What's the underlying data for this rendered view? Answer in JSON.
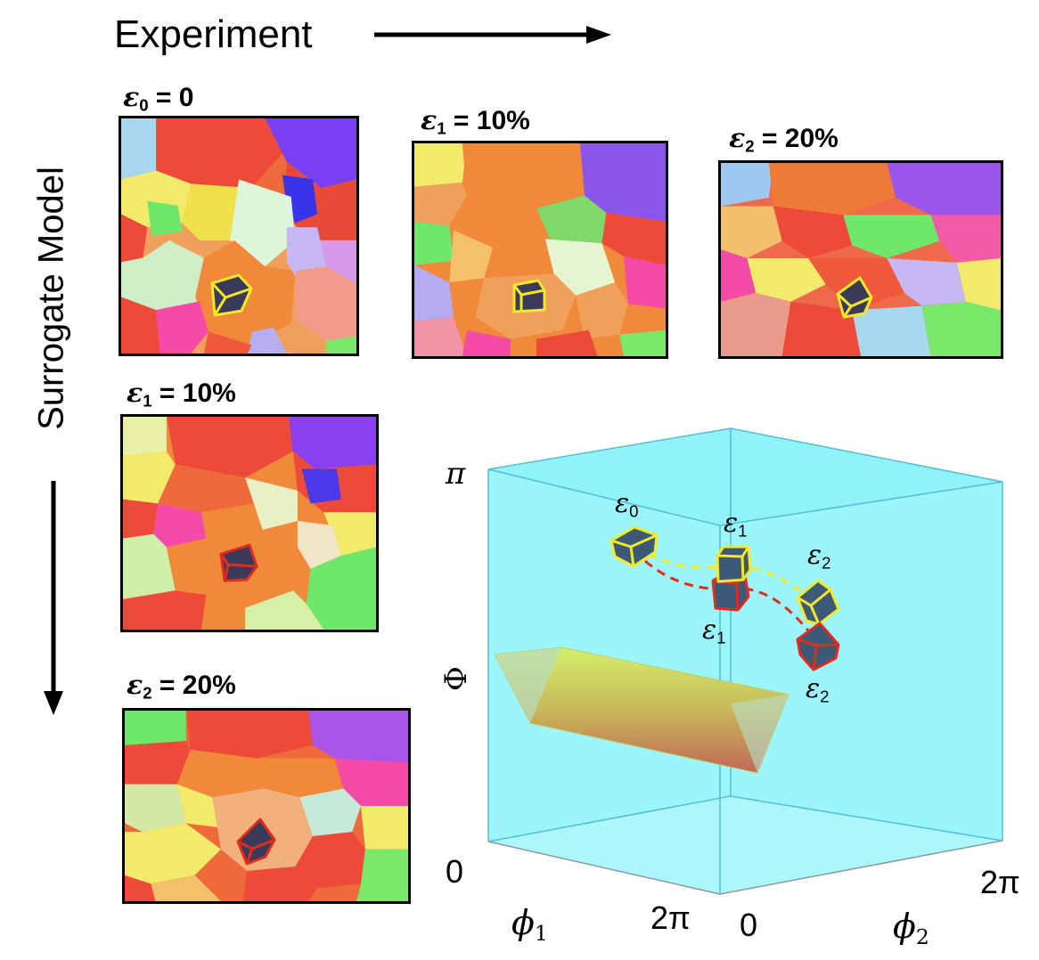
{
  "header": {
    "experiment_label": "Experiment"
  },
  "side": {
    "surrogate_label": "Surrogate Model"
  },
  "panels": {
    "exp0": {
      "eps": "ε",
      "sub": "0",
      "value": " = 0"
    },
    "exp1": {
      "eps": "ε",
      "sub": "1",
      "value": " = 10%"
    },
    "exp2": {
      "eps": "ε",
      "sub": "2",
      "value": " = 20%"
    },
    "sur1": {
      "eps": "ε",
      "sub": "1",
      "value": " = 10%"
    },
    "sur2": {
      "eps": "ε",
      "sub": "2",
      "value": " = 20%"
    }
  },
  "cube_plot": {
    "axis_labels": {
      "phi1": "ϕ",
      "phi1_sub": "1",
      "phi2": "ϕ",
      "phi2_sub": "2",
      "Phi": "Φ"
    },
    "ticks": {
      "pi": "π",
      "zero_left": "0",
      "two_pi_front": "2π",
      "zero_front": "0",
      "two_pi_right": "2π"
    },
    "markers": {
      "exp_eps0": {
        "eps": "ε",
        "sub": "0"
      },
      "exp_eps1": {
        "eps": "ε",
        "sub": "1"
      },
      "exp_eps2": {
        "eps": "ε",
        "sub": "2"
      },
      "sur_eps1": {
        "eps": "ε",
        "sub": "1"
      },
      "sur_eps2": {
        "eps": "ε",
        "sub": "2"
      }
    },
    "colors": {
      "box": "#8ff3f8",
      "edge": "#4cb8d8",
      "experiment": "#f5e829",
      "surrogate": "#e02b1e",
      "cube_fill": "#3a5a78"
    }
  }
}
